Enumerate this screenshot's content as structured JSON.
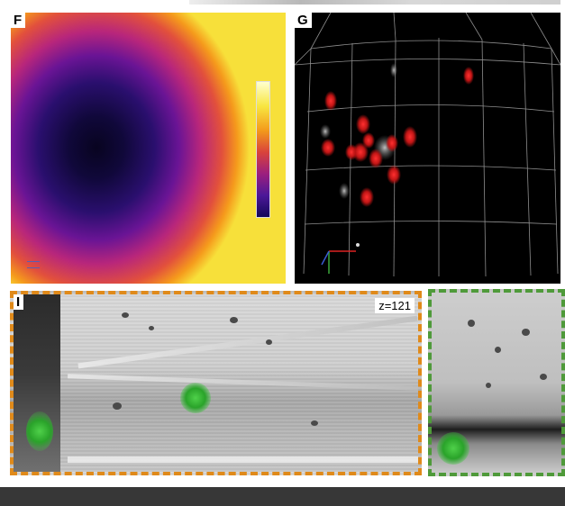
{
  "panels": {
    "f": {
      "label": "F"
    },
    "g": {
      "label": "G"
    },
    "i": {
      "label": "I",
      "z_text": "z=121"
    }
  },
  "colors": {
    "orange_border": "#e08a1a",
    "green_border": "#4f9a3a",
    "cell_red": "#d21e1e",
    "fluorescence_green": "#3cc83c",
    "bottom_bar": "#373737"
  }
}
